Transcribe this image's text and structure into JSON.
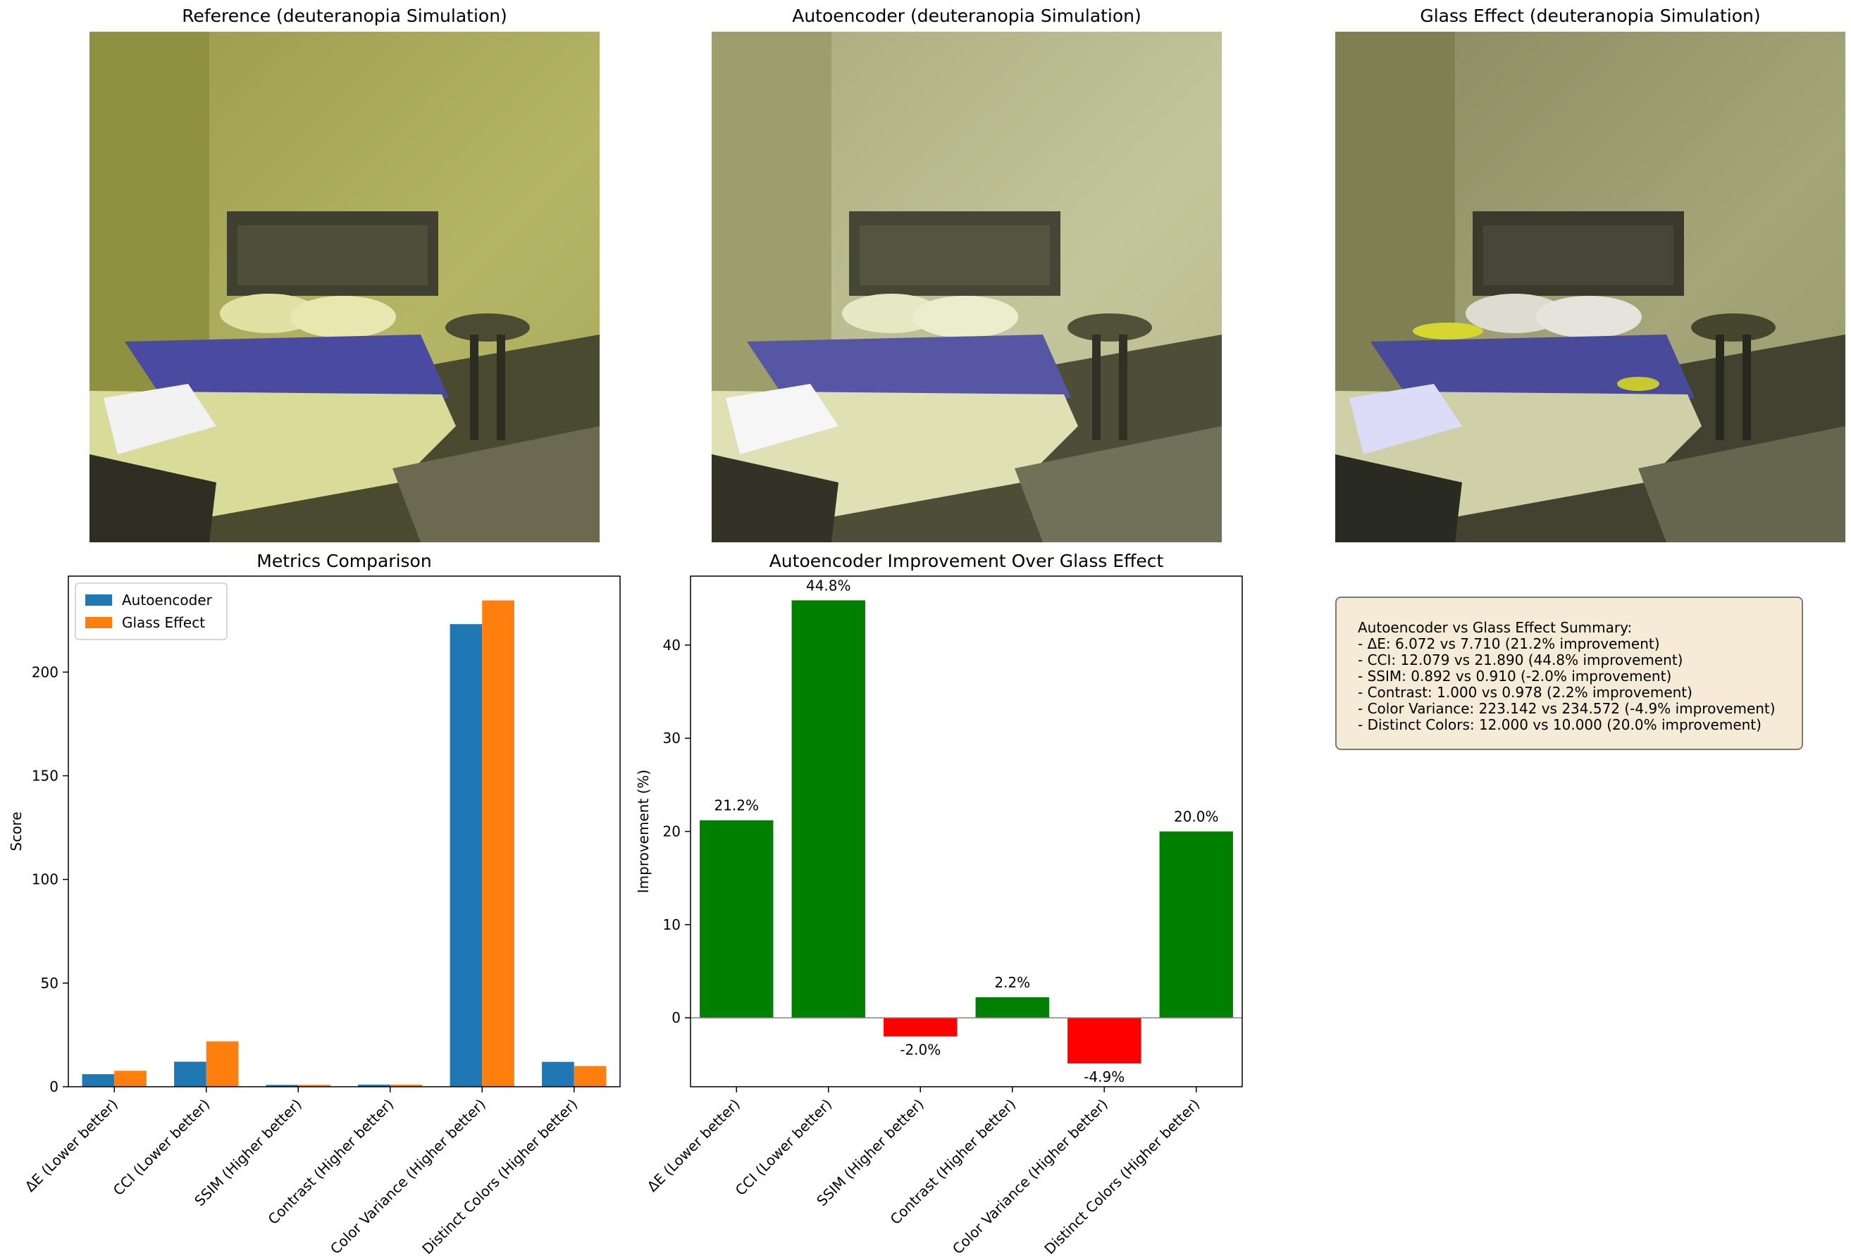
{
  "panels": {
    "reference_title": "Reference (deuteranopia Simulation)",
    "autoencoder_title": "Autoencoder (deuteranopia Simulation)",
    "glass_title": "Glass Effect (deuteranopia Simulation)"
  },
  "chart_data": [
    {
      "type": "bar",
      "title": "Metrics Comparison",
      "xlabel": "",
      "ylabel": "Score",
      "categories": [
        "ΔE (Lower better)",
        "CCI (Lower better)",
        "SSIM (Higher better)",
        "Contrast (Higher better)",
        "Color Variance (Higher better)",
        "Distinct Colors (Higher better)"
      ],
      "series": [
        {
          "name": "Autoencoder",
          "values": [
            6.072,
            12.079,
            0.892,
            1.0,
            223.142,
            12.0
          ],
          "color": "#1f77b4"
        },
        {
          "name": "Glass Effect",
          "values": [
            7.71,
            21.89,
            0.91,
            0.978,
            234.572,
            10.0
          ],
          "color": "#ff7f0e"
        }
      ],
      "ylim": [
        0,
        246.3
      ],
      "yticks": [
        0,
        50,
        100,
        150,
        200
      ],
      "legend": "top-left"
    },
    {
      "type": "bar",
      "title": "Autoencoder Improvement Over Glass Effect",
      "xlabel": "",
      "ylabel": "Improvement (%)",
      "categories": [
        "ΔE (Lower better)",
        "CCI (Lower better)",
        "SSIM (Higher better)",
        "Contrast (Higher better)",
        "Color Variance (Higher better)",
        "Distinct Colors (Higher better)"
      ],
      "values": [
        21.2,
        44.8,
        -2.0,
        2.2,
        -4.9,
        20.0
      ],
      "labels": [
        "21.2%",
        "44.8%",
        "-2.0%",
        "2.2%",
        "-4.9%",
        "20.0%"
      ],
      "positive_color": "#008000",
      "negative_color": "#ff0000",
      "ylim": [
        -7.4,
        47.4
      ],
      "yticks": [
        0,
        10,
        20,
        30,
        40
      ]
    }
  ],
  "summary": {
    "lines": [
      "Autoencoder vs Glass Effect Summary:",
      "- ΔE: 6.072 vs 7.710 (21.2% improvement)",
      "- CCI: 12.079 vs 21.890 (44.8% improvement)",
      "- SSIM: 0.892 vs 0.910 (-2.0% improvement)",
      "- Contrast: 1.000 vs 0.978 (2.2% improvement)",
      "- Color Variance: 223.142 vs 234.572 (-4.9% improvement)",
      "- Distinct Colors: 12.000 vs 10.000 (20.0% improvement)"
    ]
  }
}
